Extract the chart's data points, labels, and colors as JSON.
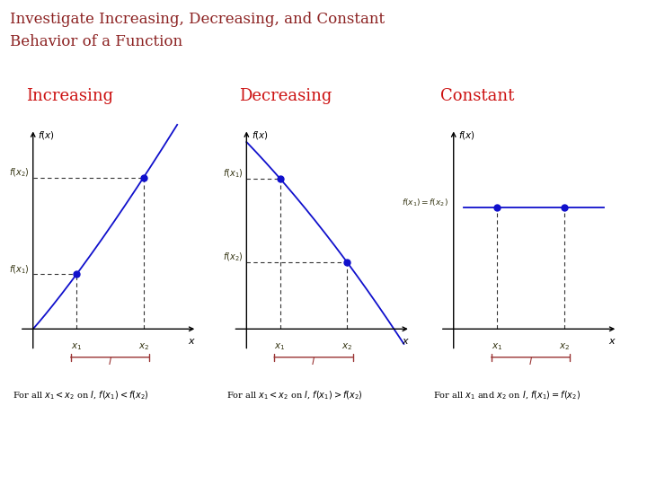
{
  "title_line1": "Investigate Increasing, Decreasing, and Constant",
  "title_line2": "Behavior of a Function",
  "title_color": "#8B2020",
  "title_fontsize": 12,
  "bg_color": "#ffffff",
  "section_labels": [
    "Increasing",
    "Decreasing",
    "Constant"
  ],
  "section_label_color": "#cc1111",
  "section_label_fontsize": 13,
  "graph_color": "#1010cc",
  "dashed_color": "#333333",
  "dot_color": "#1010cc",
  "interval_color": "#993333",
  "ann_color": "#333311"
}
